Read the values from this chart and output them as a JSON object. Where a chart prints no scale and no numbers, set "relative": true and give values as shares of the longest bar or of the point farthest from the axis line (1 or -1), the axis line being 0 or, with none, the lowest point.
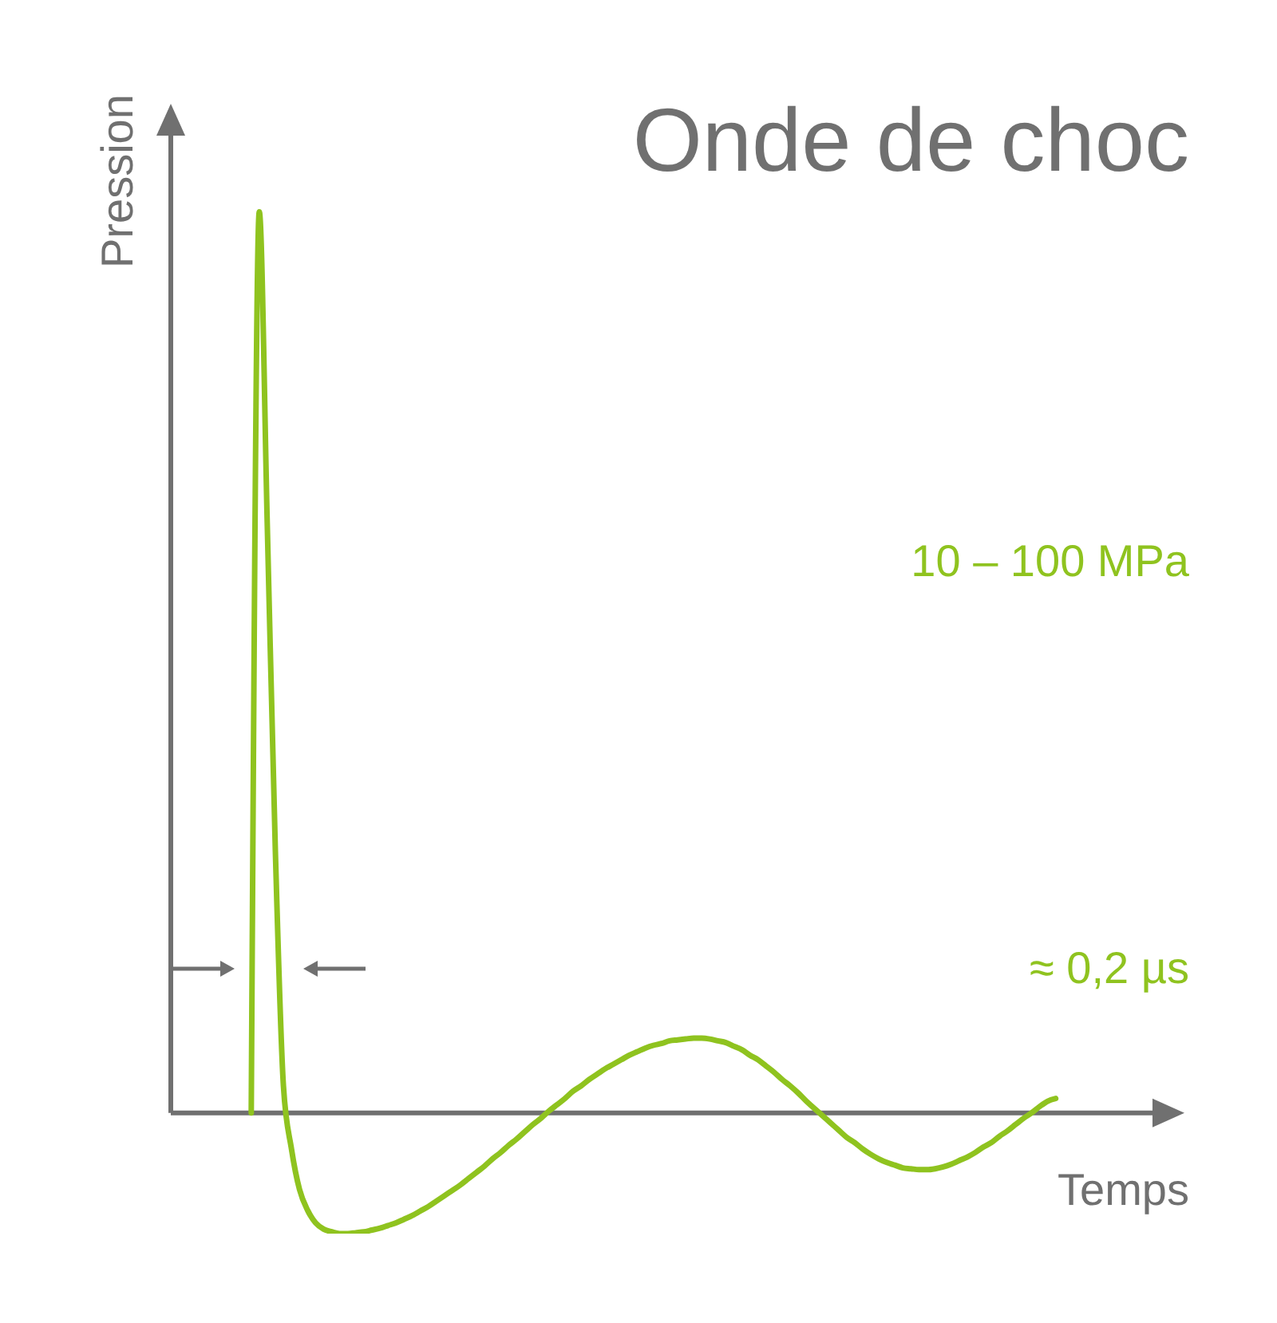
{
  "chart_data": {
    "type": "line",
    "title": "Onde de choc",
    "xlabel": "Temps",
    "ylabel": "Pression",
    "relative": true,
    "marker": "none",
    "color": "#8fc31f",
    "annotations": [
      "10 – 100 MPa",
      "≈ 0,2 µs"
    ],
    "categories": [
      null,
      null,
      null,
      null,
      null,
      null,
      null,
      null,
      null,
      null,
      null,
      null,
      null,
      null,
      null,
      null,
      null,
      null,
      null,
      null,
      null,
      null,
      null,
      null,
      null,
      null,
      null,
      null,
      null,
      null,
      null,
      null,
      null,
      null,
      null,
      null,
      null,
      null,
      null,
      null,
      null,
      null,
      null,
      null,
      null,
      null,
      null,
      null,
      null,
      null,
      null,
      null,
      null,
      null,
      null,
      null,
      null,
      null,
      null,
      null,
      null,
      null,
      null,
      null,
      null,
      null,
      null,
      null,
      null,
      null,
      null,
      null,
      null,
      null,
      null,
      null,
      null,
      null,
      null,
      null,
      null,
      null,
      null,
      null,
      null,
      null,
      null,
      null,
      null,
      null,
      null,
      null,
      null,
      null,
      null,
      null,
      null,
      null,
      null,
      null,
      null,
      null,
      null,
      null,
      null,
      null,
      null,
      null,
      null,
      null,
      null,
      null,
      null,
      null,
      null,
      null,
      null,
      null,
      null,
      null,
      null,
      null,
      null,
      null,
      null,
      null,
      null
    ],
    "values": [
      null,
      null,
      null,
      null,
      null,
      null,
      null,
      null,
      null,
      null,
      0,
      1,
      0.65,
      0.29,
      0.03,
      -0.04,
      -0.085,
      -0.108,
      -0.122,
      -0.129,
      -0.132,
      -0.134,
      -0.134,
      -0.133,
      -0.132,
      -0.13,
      -0.128,
      -0.125,
      -0.122,
      -0.118,
      -0.114,
      -0.109,
      -0.104,
      -0.098,
      -0.092,
      -0.086,
      -0.08,
      -0.073,
      -0.066,
      -0.059,
      -0.051,
      -0.044,
      -0.036,
      -0.029,
      -0.021,
      -0.013,
      -0.006,
      0.002,
      0.009,
      0.016,
      0.024,
      0.03,
      0.037,
      0.043,
      0.049,
      0.054,
      0.059,
      0.064,
      0.068,
      0.072,
      0.075,
      0.077,
      0.08,
      0.081,
      0.082,
      0.083,
      0.083,
      0.082,
      0.08,
      0.078,
      0.074,
      0.07,
      0.064,
      0.059,
      0.052,
      0.045,
      0.037,
      0.03,
      0.022,
      0.013,
      0.005,
      -0.003,
      -0.011,
      -0.019,
      -0.027,
      -0.033,
      -0.04,
      -0.046,
      -0.051,
      -0.055,
      -0.058,
      -0.061,
      -0.062,
      -0.063,
      -0.063,
      -0.062,
      -0.06,
      -0.057,
      -0.053,
      -0.049,
      -0.044,
      -0.038,
      -0.033,
      -0.026,
      -0.02,
      -0.013,
      -0.006,
      0,
      0.007,
      0.013,
      0.016,
      null,
      null,
      null,
      null,
      null,
      null,
      null,
      null,
      null,
      null,
      null,
      null,
      null,
      null,
      null,
      null
    ]
  }
}
